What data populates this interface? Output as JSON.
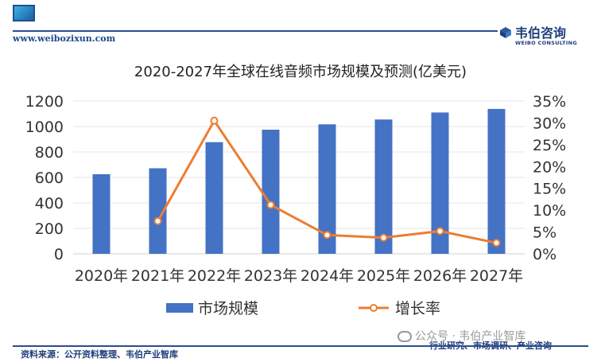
{
  "header": {
    "url": "www.weibozixun.com",
    "brand_name": "韦伯咨询",
    "brand_sub": "WEIBO CONSULTING"
  },
  "chart_data": {
    "type": "bar+line",
    "title": "2020-2027年全球在线音频市场规模及预测(亿美元)",
    "categories": [
      "2020年",
      "2021年",
      "2022年",
      "2023年",
      "2024年",
      "2025年",
      "2026年",
      "2027年"
    ],
    "series": [
      {
        "name": "市场规模",
        "type": "bar",
        "axis": "left",
        "color": "#4472c4",
        "values": [
          625,
          672,
          877,
          975,
          1017,
          1055,
          1110,
          1138
        ]
      },
      {
        "name": "增长率",
        "type": "line",
        "axis": "right",
        "color": "#ed7d31",
        "values": [
          null,
          7.5,
          30.5,
          11.2,
          4.3,
          3.7,
          5.2,
          2.5
        ]
      }
    ],
    "y_left": {
      "min": 0,
      "max": 1200,
      "step": 200,
      "ticks": [
        "0",
        "200",
        "400",
        "600",
        "800",
        "1000",
        "1200"
      ]
    },
    "y_right": {
      "min": 0,
      "max": 35,
      "step": 5,
      "ticks": [
        "0%",
        "5%",
        "10%",
        "15%",
        "20%",
        "25%",
        "30%",
        "35%"
      ]
    },
    "legend": [
      "市场规模",
      "增长率"
    ],
    "legend_position": "bottom"
  },
  "footer": {
    "source": "资料来源：公开资料整理、韦伯产业智库",
    "slogan": "行业研究、市场调研、产业咨询",
    "watermark": "公众号 · 韦伯产业智库"
  }
}
